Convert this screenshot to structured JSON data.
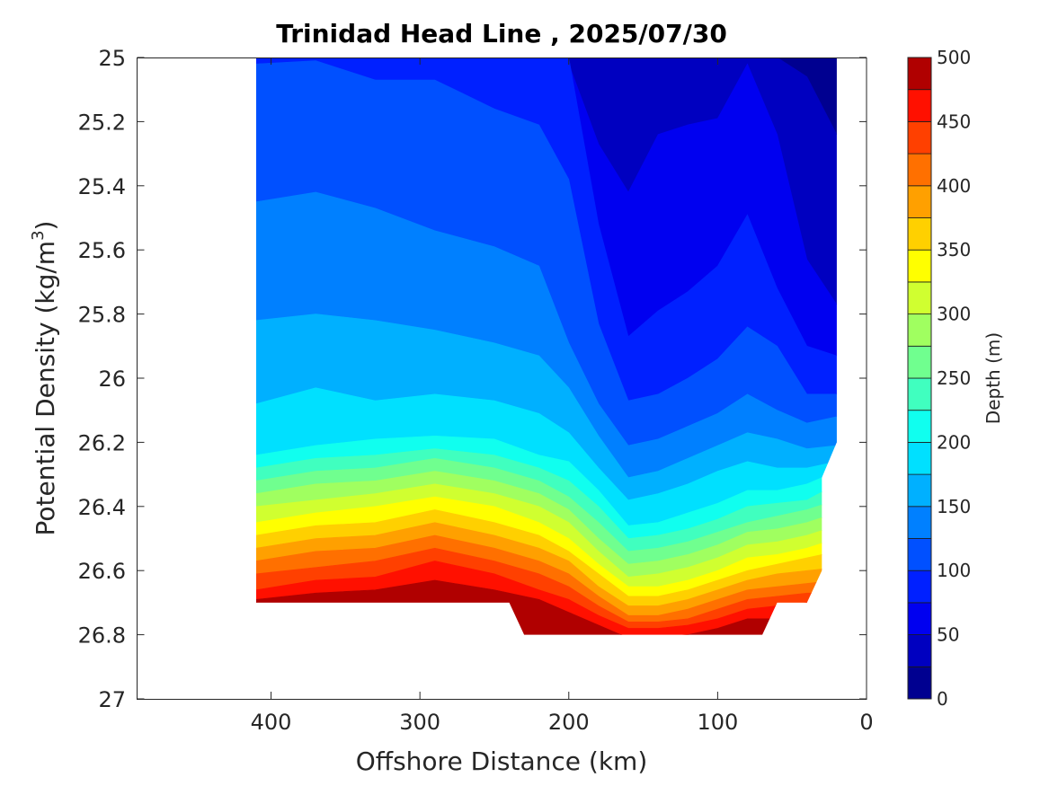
{
  "chart_data": {
    "type": "contourf",
    "title": "Trinidad Head Line , 2025/07/30",
    "xlabel": "Offshore Distance (km)",
    "ylabel_main": "Potential Density (kg/m",
    "ylabel_sup": "3",
    "ylabel_end": ")",
    "xlim": [
      490,
      0
    ],
    "ylim": [
      25,
      27
    ],
    "y_reversed": true,
    "xticks": [
      "400",
      "300",
      "200",
      "100",
      "0"
    ],
    "xtick_values": [
      400,
      300,
      200,
      100,
      0
    ],
    "yticks": [
      "25",
      "25.2",
      "25.4",
      "25.6",
      "25.8",
      "26",
      "26.2",
      "26.4",
      "26.6",
      "26.8",
      "27"
    ],
    "ytick_values": [
      25,
      25.2,
      25.4,
      25.6,
      25.8,
      26,
      26.2,
      26.4,
      26.6,
      26.8,
      27
    ],
    "colorbar": {
      "label": "Depth (m)",
      "range": [
        0,
        500
      ],
      "step": 25,
      "ticks": [
        "0",
        "50",
        "100",
        "150",
        "200",
        "250",
        "300",
        "350",
        "400",
        "450",
        "500"
      ],
      "tick_values": [
        0,
        50,
        100,
        150,
        200,
        250,
        300,
        350,
        400,
        450,
        500
      ],
      "colormap": [
        "#000090",
        "#0000c0",
        "#0000f0",
        "#0020ff",
        "#0050ff",
        "#0080ff",
        "#00b0ff",
        "#00e0ff",
        "#10ffef",
        "#40ffbf",
        "#70ff8f",
        "#a0ff60",
        "#d0ff30",
        "#ffff00",
        "#ffd000",
        "#ffa000",
        "#ff7000",
        "#ff4000",
        "#ff1000",
        "#df0000"
      ]
    },
    "colormap_top": "#b00000",
    "data_coverage": [
      [
        410,
        25
      ],
      [
        20,
        25
      ],
      [
        20,
        26.2
      ],
      [
        30,
        26.31
      ],
      [
        30,
        26.6
      ],
      [
        40,
        26.7
      ],
      [
        60,
        26.7
      ],
      [
        70,
        26.8
      ],
      [
        230,
        26.8
      ],
      [
        240,
        26.7
      ],
      [
        410,
        26.7
      ]
    ],
    "stations_km": [
      410,
      370,
      330,
      290,
      250,
      220,
      200,
      180,
      160,
      140,
      120,
      100,
      80,
      60,
      40,
      20
    ],
    "depth_contours": [
      {
        "depth": 25,
        "density": [
          25,
          25,
          25,
          25,
          25,
          25,
          25,
          25,
          25,
          25,
          25,
          25,
          25,
          25,
          25.06,
          25.24
        ]
      },
      {
        "depth": 50,
        "density": [
          25,
          25,
          25,
          25,
          25,
          25,
          25.02,
          25.27,
          25.42,
          25.24,
          25.21,
          25.19,
          25.02,
          25.24,
          25.63,
          25.77
        ]
      },
      {
        "depth": 75,
        "density": [
          25,
          25,
          25,
          25,
          25,
          25,
          25,
          25.52,
          25.87,
          25.79,
          25.73,
          25.65,
          25.49,
          25.72,
          25.9,
          25.93
        ]
      },
      {
        "depth": 100,
        "density": [
          25.02,
          25.01,
          25.07,
          25.07,
          25.16,
          25.21,
          25.38,
          25.83,
          26.07,
          26.05,
          26.0,
          25.94,
          25.84,
          25.9,
          26.05,
          26.05
        ]
      },
      {
        "depth": 125,
        "density": [
          25.45,
          25.42,
          25.47,
          25.54,
          25.59,
          25.65,
          25.89,
          26.08,
          26.21,
          26.19,
          26.15,
          26.11,
          26.05,
          26.1,
          26.14,
          26.12
        ]
      },
      {
        "depth": 150,
        "density": [
          25.82,
          25.8,
          25.82,
          25.85,
          25.89,
          25.93,
          26.03,
          26.18,
          26.31,
          26.29,
          26.25,
          26.21,
          26.17,
          26.19,
          26.22,
          26.21
        ]
      },
      {
        "depth": 175,
        "density": [
          26.08,
          26.03,
          26.07,
          26.05,
          26.07,
          26.11,
          26.17,
          26.28,
          26.38,
          26.36,
          26.33,
          26.29,
          26.26,
          26.28,
          26.28,
          26.26
        ]
      },
      {
        "depth": 200,
        "density": [
          26.24,
          26.21,
          26.19,
          26.18,
          26.19,
          26.24,
          26.26,
          26.35,
          26.46,
          26.45,
          26.42,
          26.39,
          26.35,
          26.35,
          26.33,
          26.29
        ]
      },
      {
        "depth": 225,
        "density": [
          26.28,
          26.25,
          26.24,
          26.22,
          26.24,
          26.28,
          26.32,
          26.4,
          26.5,
          26.49,
          26.47,
          26.44,
          26.4,
          26.39,
          26.38,
          26.33
        ]
      },
      {
        "depth": 250,
        "density": [
          26.32,
          26.29,
          26.28,
          26.25,
          26.28,
          26.32,
          26.37,
          26.45,
          26.54,
          26.53,
          26.51,
          26.48,
          26.45,
          26.43,
          26.41,
          26.38
        ]
      },
      {
        "depth": 275,
        "density": [
          26.36,
          26.33,
          26.32,
          26.29,
          26.32,
          26.36,
          26.41,
          26.5,
          26.58,
          26.57,
          26.55,
          26.52,
          26.48,
          26.47,
          26.45,
          26.42
        ]
      },
      {
        "depth": 300,
        "density": [
          26.4,
          26.38,
          26.36,
          26.33,
          26.36,
          26.4,
          26.45,
          26.54,
          26.62,
          26.61,
          26.59,
          26.56,
          26.52,
          26.51,
          26.49,
          26.46
        ]
      },
      {
        "depth": 325,
        "density": [
          26.45,
          26.42,
          26.4,
          26.37,
          26.4,
          26.45,
          26.5,
          26.58,
          26.65,
          26.65,
          26.63,
          26.6,
          26.56,
          26.55,
          26.53,
          26.5
        ]
      },
      {
        "depth": 350,
        "density": [
          26.49,
          26.46,
          26.45,
          26.41,
          26.45,
          26.49,
          26.54,
          26.61,
          26.68,
          26.68,
          26.66,
          26.63,
          26.6,
          26.58,
          26.56,
          26.54
        ]
      },
      {
        "depth": 375,
        "density": [
          26.53,
          26.5,
          26.49,
          26.45,
          26.49,
          26.53,
          26.57,
          26.65,
          26.71,
          26.71,
          26.69,
          26.66,
          26.63,
          26.61,
          26.6,
          26.59
        ]
      },
      {
        "depth": 400,
        "density": [
          26.57,
          26.54,
          26.53,
          26.49,
          26.53,
          26.57,
          26.61,
          26.68,
          26.74,
          26.74,
          26.72,
          26.69,
          26.66,
          26.65,
          26.64,
          26.63
        ]
      },
      {
        "depth": 425,
        "density": [
          26.61,
          26.59,
          26.57,
          26.53,
          26.57,
          26.61,
          26.65,
          26.71,
          26.76,
          26.76,
          26.75,
          26.72,
          26.69,
          26.68,
          26.67,
          26.67
        ]
      },
      {
        "depth": 450,
        "density": [
          26.66,
          26.63,
          26.62,
          26.57,
          26.61,
          26.66,
          26.69,
          26.74,
          26.78,
          26.78,
          26.77,
          26.75,
          26.72,
          26.71,
          26.7,
          26.7
        ]
      },
      {
        "depth": 475,
        "density": [
          26.69,
          26.67,
          26.66,
          26.63,
          26.66,
          26.69,
          26.73,
          26.77,
          26.81,
          26.81,
          26.8,
          26.78,
          26.75,
          26.75,
          26.75,
          26.75
        ]
      }
    ]
  }
}
